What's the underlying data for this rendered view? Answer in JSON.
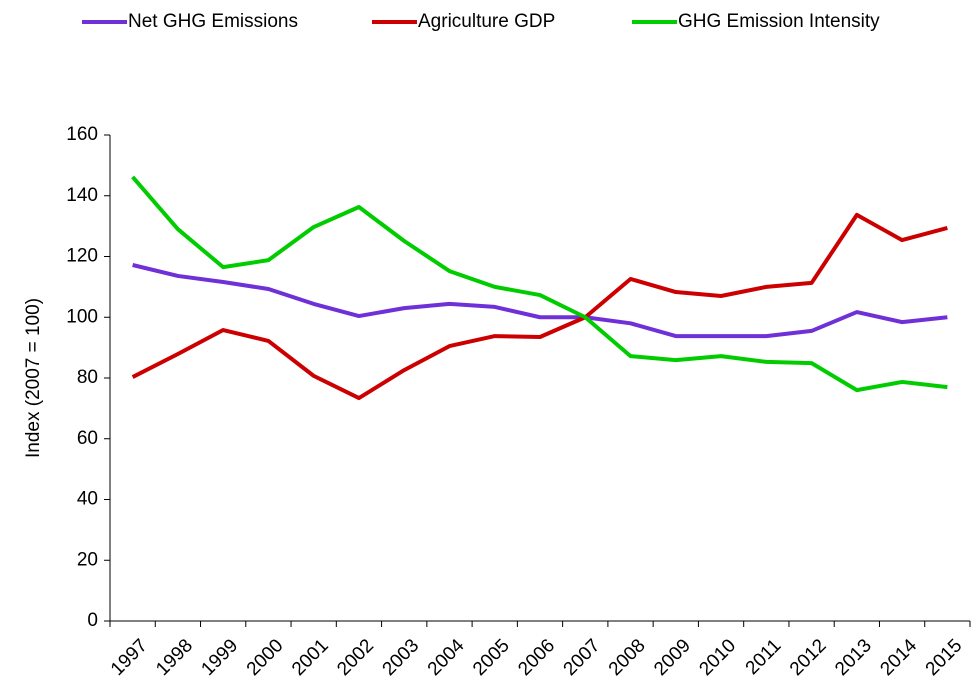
{
  "chart_data": {
    "type": "line",
    "y_label": "Index (2007 = 100)",
    "categories": [
      "1997",
      "1998",
      "1999",
      "2000",
      "2001",
      "2002",
      "2003",
      "2004",
      "2005",
      "2006",
      "2007",
      "2008",
      "2009",
      "2010",
      "2011",
      "2012",
      "2013",
      "2014",
      "2015"
    ],
    "series": [
      {
        "name": "Net GHG Emissions",
        "color": "#7030d8",
        "values": [
          117.2,
          113.6,
          111.6,
          109.3,
          104.4,
          100.4,
          103,
          104.4,
          103.4,
          100,
          100,
          98,
          93.8,
          93.8,
          93.8,
          95.5,
          101.7,
          98.4,
          100
        ]
      },
      {
        "name": "Agriculture GDP",
        "color": "#cc0000",
        "values": [
          80.3,
          87.9,
          95.8,
          92.2,
          80.7,
          73.4,
          82.6,
          90.5,
          93.8,
          93.5,
          100,
          112.6,
          108.3,
          107,
          110,
          111.3,
          133.7,
          125.4,
          129.4
        ]
      },
      {
        "name": "GHG Emission Intensity",
        "color": "#00cc00",
        "values": [
          146.2,
          129,
          116.5,
          118.8,
          129.7,
          136.3,
          125.1,
          115.2,
          110,
          107.3,
          100,
          87.2,
          85.9,
          87.2,
          85.3,
          84.9,
          76,
          78.7,
          77
        ]
      }
    ],
    "ylim": [
      0,
      160
    ],
    "yticks": [
      0,
      20,
      40,
      60,
      80,
      100,
      120,
      140,
      160
    ],
    "legend": "top",
    "grid": false
  }
}
